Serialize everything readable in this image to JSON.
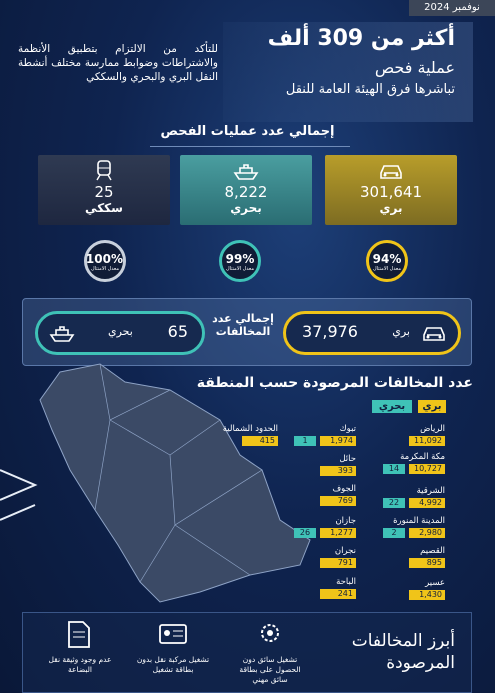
{
  "header": {
    "date": "نوفمبر 2024",
    "headline": "أكثر من 309 ألف",
    "subtitle": "عملية فحص",
    "tagline": "تباشرها فرق الهيئة العامة للنقل",
    "intro": "للتأكد من الالتزام بتطبيق الأنظمة والاشتراطات وضوابط ممارسة مختلف أنشطة النقل البري والبحري والسككي"
  },
  "inspections": {
    "title": "إجمالي عدد عمليات الفحص",
    "items": [
      {
        "value": "301,641",
        "label": "بري",
        "compliance": "94%",
        "compliance_label": "معدل الامتثال"
      },
      {
        "value": "8,222",
        "label": "بحري",
        "compliance": "99%",
        "compliance_label": "معدل الامتثال"
      },
      {
        "value": "25",
        "label": "سككي",
        "compliance": "100%",
        "compliance_label": "معدل الامتثال"
      }
    ]
  },
  "violations": {
    "title": "إجمالي عدد المخالفات",
    "items": [
      {
        "value": "37,976",
        "label": "بري"
      },
      {
        "value": "65",
        "label": "بحري"
      }
    ]
  },
  "regions": {
    "title": "عدد المخالفات المرصودة حسب المنطقة",
    "legend": [
      "بري",
      "بحري"
    ],
    "rows": [
      {
        "name": "الرياض",
        "land": "11,092"
      },
      {
        "name": "مكة المكرمة",
        "land": "10,727",
        "sea": "14"
      },
      {
        "name": "الشرقية",
        "land": "4,992",
        "sea": "22"
      },
      {
        "name": "المدينة المنورة",
        "land": "2,980",
        "sea": "2"
      },
      {
        "name": "القصيم",
        "land": "895"
      },
      {
        "name": "عسير",
        "land": "1,430"
      },
      {
        "name": "تبوك",
        "land": "1,974",
        "sea": "1"
      },
      {
        "name": "حائل",
        "land": "393"
      },
      {
        "name": "الجوف",
        "land": "769"
      },
      {
        "name": "جازان",
        "land": "1,277",
        "sea": "26"
      },
      {
        "name": "نجران",
        "land": "791"
      },
      {
        "name": "الباحة",
        "land": "241"
      },
      {
        "name": "الحدود الشمالية",
        "land": "415"
      }
    ]
  },
  "top_violations": {
    "title": "أبرز المخالفات المرصودة",
    "items": [
      "تشغيل سائق دون الحصول على بطاقة سائق مهني",
      "تشغيل مركبة نقل بدون بطاقة تشغيل",
      "عدم وجود وثيقة نقل البضاعة"
    ]
  }
}
